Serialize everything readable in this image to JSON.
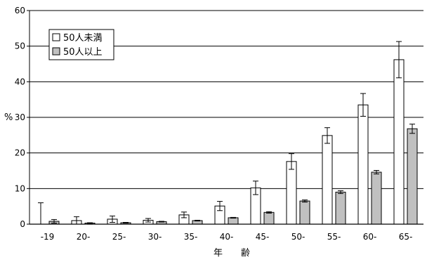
{
  "chart_data": {
    "type": "bar",
    "title": "",
    "xlabel": "年　　齢",
    "ylabel": "%",
    "ylim": [
      0,
      60
    ],
    "yticks": [
      0,
      10,
      20,
      30,
      40,
      50,
      60
    ],
    "grid": "horizontal",
    "legend_position": "top-left",
    "categories": [
      "-19",
      "20-",
      "25-",
      "30-",
      "35-",
      "40-",
      "45-",
      "50-",
      "55-",
      "60-",
      "65-"
    ],
    "series": [
      {
        "name": "50人未満",
        "color": "#ffffff",
        "values": [
          0,
          1.0,
          1.4,
          1.1,
          2.6,
          5.1,
          10.2,
          17.6,
          24.9,
          33.5,
          46.2
        ],
        "err": [
          6.0,
          1.1,
          0.9,
          0.5,
          0.8,
          1.3,
          1.9,
          2.2,
          2.2,
          3.2,
          5.1
        ]
      },
      {
        "name": "50人以上",
        "color": "#c0c0c0",
        "values": [
          0.8,
          0.3,
          0.4,
          0.7,
          1.0,
          1.8,
          3.3,
          6.5,
          9.0,
          14.6,
          26.8
        ],
        "err": [
          0.5,
          0.1,
          0.1,
          0.1,
          0.1,
          0.1,
          0.2,
          0.3,
          0.4,
          0.5,
          1.3
        ]
      }
    ]
  }
}
